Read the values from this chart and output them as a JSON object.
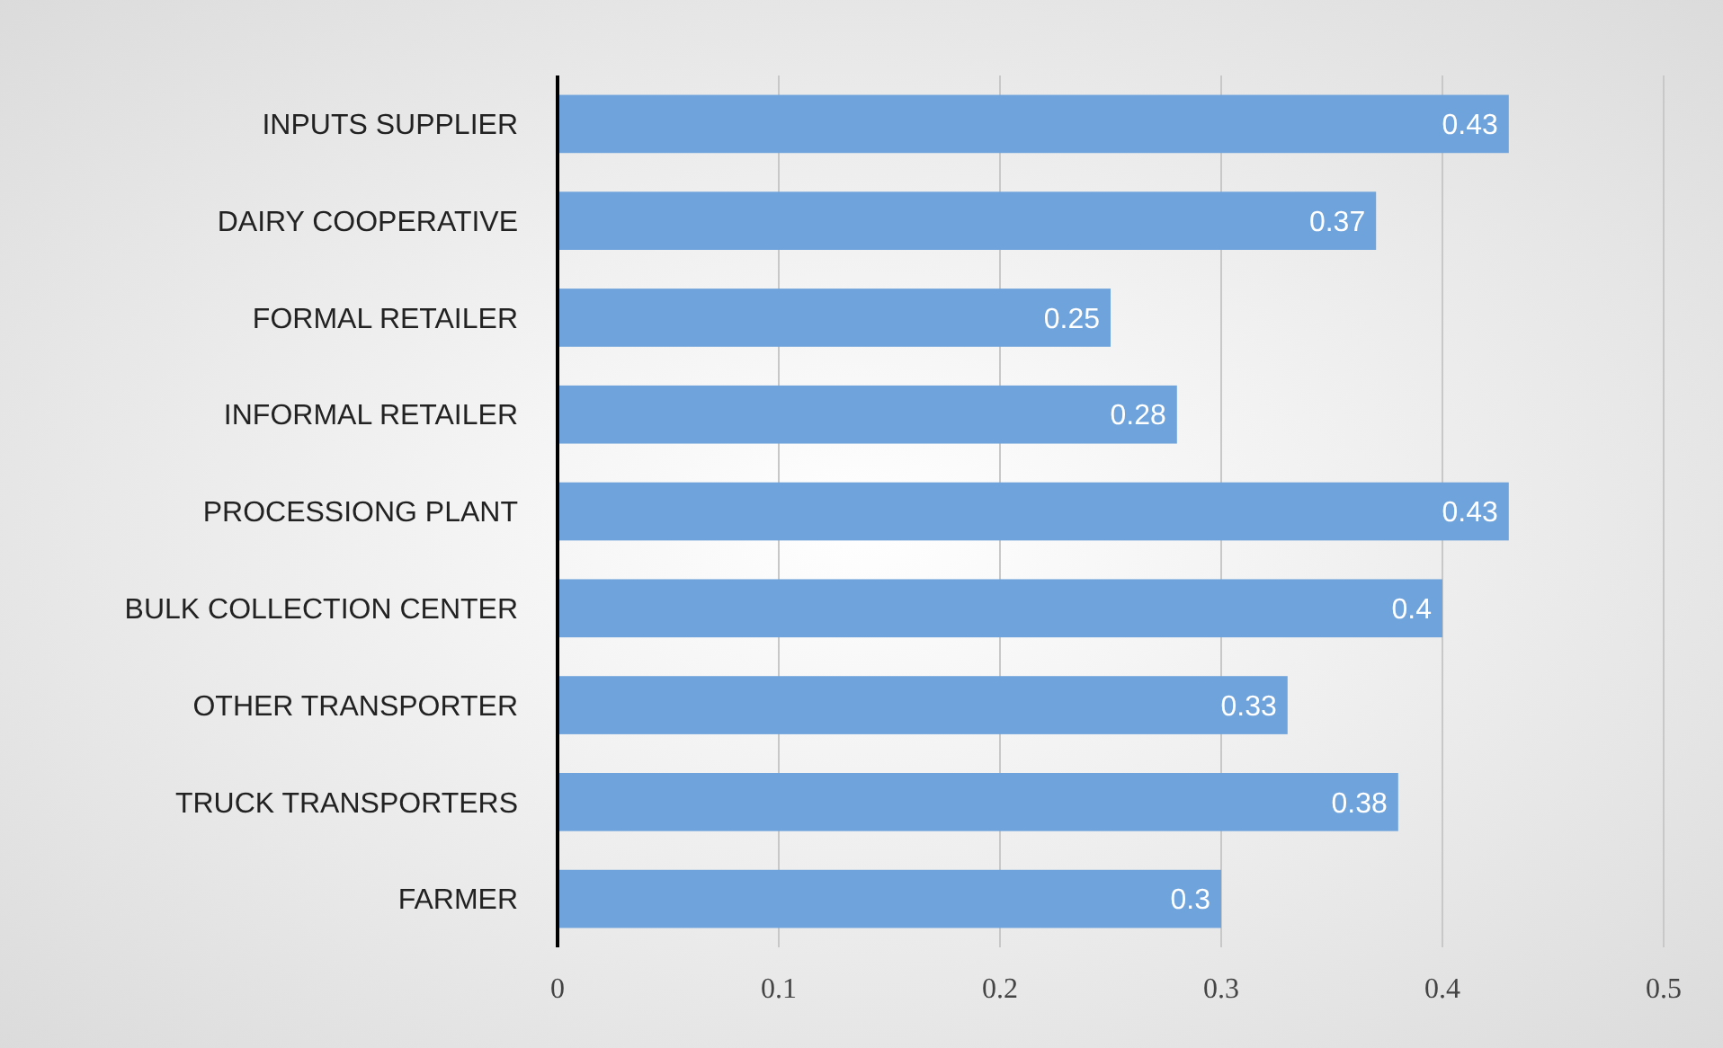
{
  "chart_data": {
    "type": "bar",
    "orientation": "horizontal",
    "categories": [
      "INPUTS SUPPLIER",
      "DAIRY COOPERATIVE",
      "FORMAL RETAILER",
      "INFORMAL RETAILER",
      "PROCESSIONG PLANT",
      "BULK COLLECTION CENTER",
      "OTHER TRANSPORTER",
      "TRUCK TRANSPORTERS",
      "FARMER"
    ],
    "values": [
      0.43,
      0.37,
      0.25,
      0.28,
      0.43,
      0.4,
      0.33,
      0.38,
      0.3
    ],
    "color": "#6fa3dc",
    "xlim": [
      0,
      0.5
    ],
    "xticks": [
      0,
      0.1,
      0.2,
      0.3,
      0.4,
      0.5
    ],
    "grid": "x",
    "data_labels": true
  }
}
